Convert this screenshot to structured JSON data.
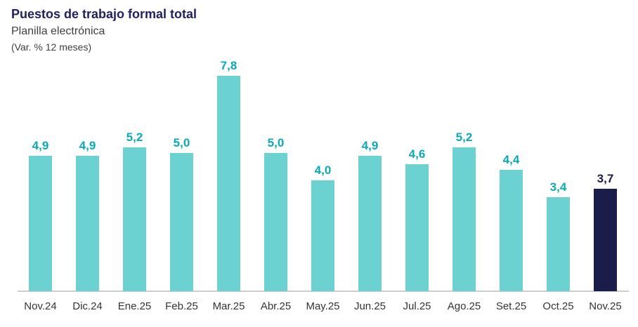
{
  "header": {
    "title": "Puestos de trabajo formal total",
    "subtitle": "Planilla electrónica",
    "units_note": "(Var. % 12 meses)"
  },
  "chart_data": {
    "type": "bar",
    "title": "Puestos de trabajo formal total",
    "subtitle": "Planilla electrónica",
    "ylabel": "Var. % 12 meses",
    "xlabel": "",
    "categories": [
      "Nov.24",
      "Dic.24",
      "Ene.25",
      "Feb.25",
      "Mar.25",
      "Abr.25",
      "May.25",
      "Jun.25",
      "Jul.25",
      "Ago.25",
      "Set.25",
      "Oct.25",
      "Nov.25"
    ],
    "values": [
      4.9,
      4.9,
      5.2,
      5.0,
      7.8,
      5.0,
      4.0,
      4.9,
      4.6,
      5.2,
      4.4,
      3.4,
      3.7
    ],
    "value_labels": [
      "4,9",
      "4,9",
      "5,2",
      "5,0",
      "7,8",
      "5,0",
      "4,0",
      "4,9",
      "4,6",
      "5,2",
      "4,4",
      "3,4",
      "3,7"
    ],
    "ylim": [
      0,
      8.5
    ],
    "grid": false,
    "legend": "none",
    "bar_labels_shown": true,
    "highlight_index": 12,
    "highlight_category": "Nov.25",
    "colors": {
      "bar": "#6cd1d1",
      "value_label": "#0aa9b7",
      "highlight_bar": "#1a1c49",
      "highlight_label": "#1a1c49",
      "axis_line": "#cdcdcd",
      "title": "#232060"
    }
  }
}
